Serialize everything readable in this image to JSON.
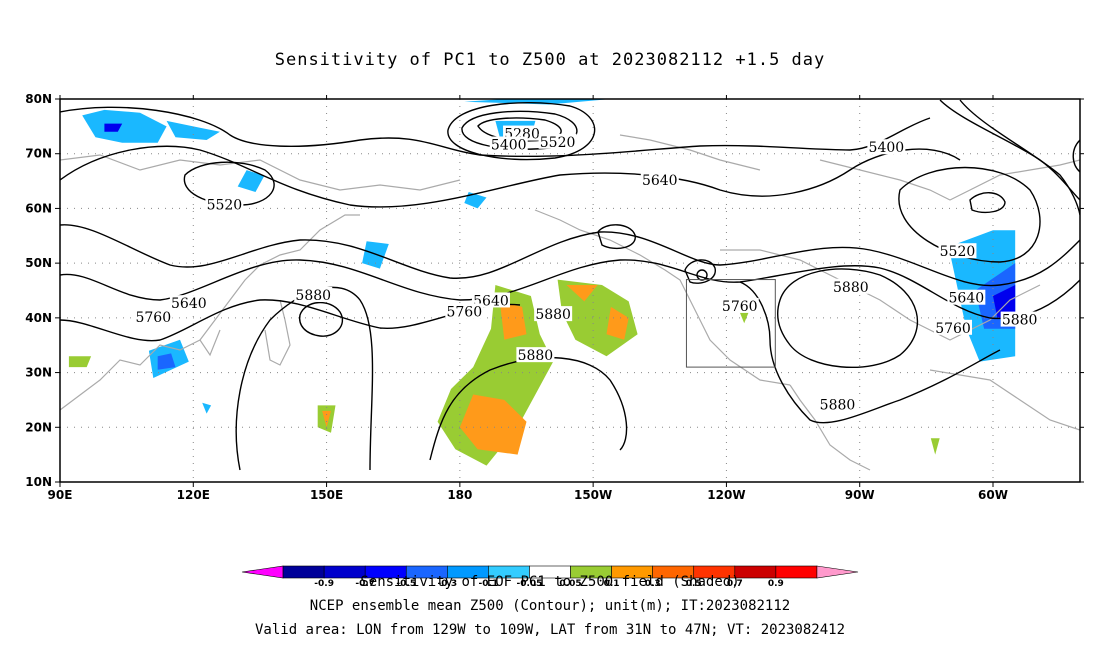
{
  "title": "Sensitivity of PC1 to Z500 at 2023082112 +1.5 day",
  "captions": {
    "line1": "Sensitivity of EOF PC1 to Z500 field (Shaded)",
    "line2": "NCEP ensemble mean Z500 (Contour); unit(m); IT:2023082112",
    "line3": "Valid area: LON from 129W to 109W, LAT from 31N to 47N; VT: 2023082412"
  },
  "map": {
    "lon_range": [
      90,
      300
    ],
    "lat_range": [
      10,
      80
    ],
    "x_ticks": [
      {
        "lon": 90,
        "label": "90E"
      },
      {
        "lon": 120,
        "label": "120E"
      },
      {
        "lon": 150,
        "label": "150E"
      },
      {
        "lon": 180,
        "label": "180"
      },
      {
        "lon": 210,
        "label": "150W"
      },
      {
        "lon": 240,
        "label": "120W"
      },
      {
        "lon": 270,
        "label": "90W"
      },
      {
        "lon": 300,
        "label": "60W"
      }
    ],
    "y_ticks": [
      {
        "lat": 10,
        "label": "10N"
      },
      {
        "lat": 20,
        "label": "20N"
      },
      {
        "lat": 30,
        "label": "30N"
      },
      {
        "lat": 40,
        "label": "40N"
      },
      {
        "lat": 50,
        "label": "50N"
      },
      {
        "lat": 60,
        "label": "60N"
      },
      {
        "lat": 70,
        "label": "70N"
      },
      {
        "lat": 80,
        "label": "80N"
      }
    ],
    "valid_area": {
      "lon_min": 231,
      "lon_max": 251,
      "lat_min": 31,
      "lat_max": 47
    },
    "contour_labels": [
      {
        "text": "5280",
        "lon": 194,
        "lat": 73.5
      },
      {
        "text": "5400",
        "lon": 191,
        "lat": 71.5
      },
      {
        "text": "5520",
        "lon": 202,
        "lat": 72
      },
      {
        "text": "5400",
        "lon": 276,
        "lat": 71
      },
      {
        "text": "5520",
        "lon": 127,
        "lat": 60.5
      },
      {
        "text": "5640",
        "lon": 225,
        "lat": 65
      },
      {
        "text": "5520",
        "lon": 292,
        "lat": 52
      },
      {
        "text": "5640",
        "lon": 119,
        "lat": 42.5
      },
      {
        "text": "5880",
        "lon": 147,
        "lat": 44
      },
      {
        "text": "5640",
        "lon": 187,
        "lat": 43
      },
      {
        "text": "5760",
        "lon": 181,
        "lat": 41
      },
      {
        "text": "5880",
        "lon": 201,
        "lat": 40.5
      },
      {
        "text": "5760",
        "lon": 243,
        "lat": 42
      },
      {
        "text": "5880",
        "lon": 268,
        "lat": 45.5
      },
      {
        "text": "5640",
        "lon": 294,
        "lat": 43.5
      },
      {
        "text": "5880",
        "lon": 306,
        "lat": 39.5
      },
      {
        "text": "5760",
        "lon": 111,
        "lat": 40
      },
      {
        "text": "5760",
        "lon": 291,
        "lat": 38
      },
      {
        "text": "5880",
        "lon": 197,
        "lat": 33
      },
      {
        "text": "5880",
        "lon": 265,
        "lat": 24
      }
    ],
    "shading": [
      {
        "value": 0.3,
        "poly": [
          [
            95,
            77
          ],
          [
            100,
            78
          ],
          [
            108,
            77.5
          ],
          [
            114,
            75
          ],
          [
            112,
            72
          ],
          [
            104,
            72
          ],
          [
            98,
            73
          ]
        ]
      },
      {
        "value": -0.3,
        "poly": [
          [
            97,
            76
          ],
          [
            103,
            76.5
          ],
          [
            109,
            75
          ],
          [
            106,
            73
          ],
          [
            99,
            74
          ]
        ]
      },
      {
        "value": -0.7,
        "poly": [
          [
            100,
            75.5
          ],
          [
            104,
            75.5
          ],
          [
            103,
            74
          ],
          [
            100,
            74
          ]
        ]
      },
      {
        "value": -0.3,
        "poly": [
          [
            114,
            76
          ],
          [
            120,
            75
          ],
          [
            126,
            74
          ],
          [
            123,
            72.5
          ],
          [
            116,
            73
          ]
        ]
      },
      {
        "value": -0.3,
        "poly": [
          [
            132,
            67
          ],
          [
            136,
            66
          ],
          [
            134,
            63
          ],
          [
            130,
            64
          ]
        ]
      },
      {
        "value": -0.3,
        "poly": [
          [
            181,
            79.5
          ],
          [
            200,
            79
          ],
          [
            214,
            80
          ],
          [
            190,
            80
          ]
        ]
      },
      {
        "value": -0.3,
        "poly": [
          [
            188,
            76
          ],
          [
            197,
            76
          ],
          [
            196,
            73
          ],
          [
            189,
            73
          ]
        ]
      },
      {
        "value": -0.3,
        "poly": [
          [
            182,
            63
          ],
          [
            186,
            62
          ],
          [
            184,
            60
          ],
          [
            181,
            61
          ]
        ]
      },
      {
        "value": -0.3,
        "poly": [
          [
            159,
            54
          ],
          [
            164,
            53.5
          ],
          [
            162,
            49
          ],
          [
            158,
            50
          ]
        ]
      },
      {
        "value": -0.3,
        "poly": [
          [
            110,
            34
          ],
          [
            117,
            36
          ],
          [
            119,
            32
          ],
          [
            111,
            29
          ]
        ]
      },
      {
        "value": -0.5,
        "poly": [
          [
            112,
            33
          ],
          [
            115,
            33.5
          ],
          [
            116,
            31
          ],
          [
            112,
            30.5
          ]
        ]
      },
      {
        "value": -0.3,
        "poly": [
          [
            122,
            24.5
          ],
          [
            124,
            24
          ],
          [
            123,
            22.5
          ]
        ]
      },
      {
        "value": -0.3,
        "poly": [
          [
            290,
            53
          ],
          [
            300,
            56
          ],
          [
            305,
            56
          ],
          [
            305,
            33
          ],
          [
            297,
            32
          ],
          [
            294,
            38
          ]
        ]
      },
      {
        "value": -0.5,
        "poly": [
          [
            296,
            45
          ],
          [
            305,
            50
          ],
          [
            305,
            38
          ],
          [
            298,
            38
          ]
        ]
      },
      {
        "value": -0.7,
        "poly": [
          [
            300,
            44
          ],
          [
            305,
            46
          ],
          [
            305,
            40
          ],
          [
            301,
            40
          ]
        ]
      },
      {
        "value": 0.5,
        "poly": [
          [
            188,
            46
          ],
          [
            196,
            44
          ],
          [
            198,
            37
          ],
          [
            201,
            32
          ],
          [
            197,
            26
          ],
          [
            193,
            20
          ],
          [
            186,
            13
          ],
          [
            179,
            16
          ],
          [
            175,
            21
          ],
          [
            178,
            27
          ],
          [
            183,
            31
          ],
          [
            187,
            38
          ]
        ]
      },
      {
        "value": 0.7,
        "poly": [
          [
            183,
            26
          ],
          [
            190,
            25
          ],
          [
            195,
            21
          ],
          [
            193,
            15
          ],
          [
            184,
            16
          ],
          [
            180,
            20
          ]
        ]
      },
      {
        "value": 0.7,
        "poly": [
          [
            189,
            43
          ],
          [
            194,
            42
          ],
          [
            195,
            37
          ],
          [
            190,
            36
          ]
        ]
      },
      {
        "value": 0.5,
        "poly": [
          [
            202,
            47
          ],
          [
            212,
            46
          ],
          [
            218,
            43
          ],
          [
            220,
            37
          ],
          [
            213,
            33
          ],
          [
            206,
            36
          ],
          [
            203,
            41
          ]
        ]
      },
      {
        "value": 0.7,
        "poly": [
          [
            204,
            46
          ],
          [
            211,
            46
          ],
          [
            208,
            43
          ]
        ]
      },
      {
        "value": 0.7,
        "poly": [
          [
            214,
            42
          ],
          [
            218,
            40
          ],
          [
            217,
            36
          ],
          [
            213,
            37
          ]
        ]
      },
      {
        "value": 0.5,
        "poly": [
          [
            148,
            24
          ],
          [
            152,
            24
          ],
          [
            151,
            19
          ],
          [
            148,
            20
          ]
        ]
      },
      {
        "value": 0.7,
        "poly": [
          [
            149,
            23
          ],
          [
            151,
            23
          ],
          [
            150,
            20
          ]
        ]
      },
      {
        "value": 0.5,
        "poly": [
          [
            243,
            41
          ],
          [
            245,
            41
          ],
          [
            244,
            39
          ]
        ]
      },
      {
        "value": 0.5,
        "poly": [
          [
            286,
            18
          ],
          [
            288,
            18
          ],
          [
            287,
            15
          ]
        ]
      },
      {
        "value": 0.5,
        "poly": [
          [
            92,
            33
          ],
          [
            97,
            33
          ],
          [
            96,
            31
          ],
          [
            92,
            31
          ]
        ]
      }
    ]
  },
  "colorbar": {
    "colors": [
      "#ff00ff",
      "#000099",
      "#0000cc",
      "#0000ff",
      "#1a66ff",
      "#0099ff",
      "#33ccff",
      "#ffffff",
      "#99cc33",
      "#ff9900",
      "#ff6600",
      "#ff3300",
      "#cc0000",
      "#ff0000",
      "#ff99cc"
    ],
    "labels": [
      "-0.9",
      "-0.7",
      "-0.5",
      "-0.3",
      "-0.1",
      "-0.05",
      "0.05",
      "0.1",
      "0.3",
      "0.5",
      "0.7",
      "0.9"
    ]
  },
  "shade_colors": {
    "-0.7": "#0000ee",
    "-0.5": "#1a66ff",
    "-0.3": "#1ab8ff",
    "0.3": "#1ab8ff",
    "0.5": "#99cc33",
    "0.7": "#ff9a1a"
  }
}
